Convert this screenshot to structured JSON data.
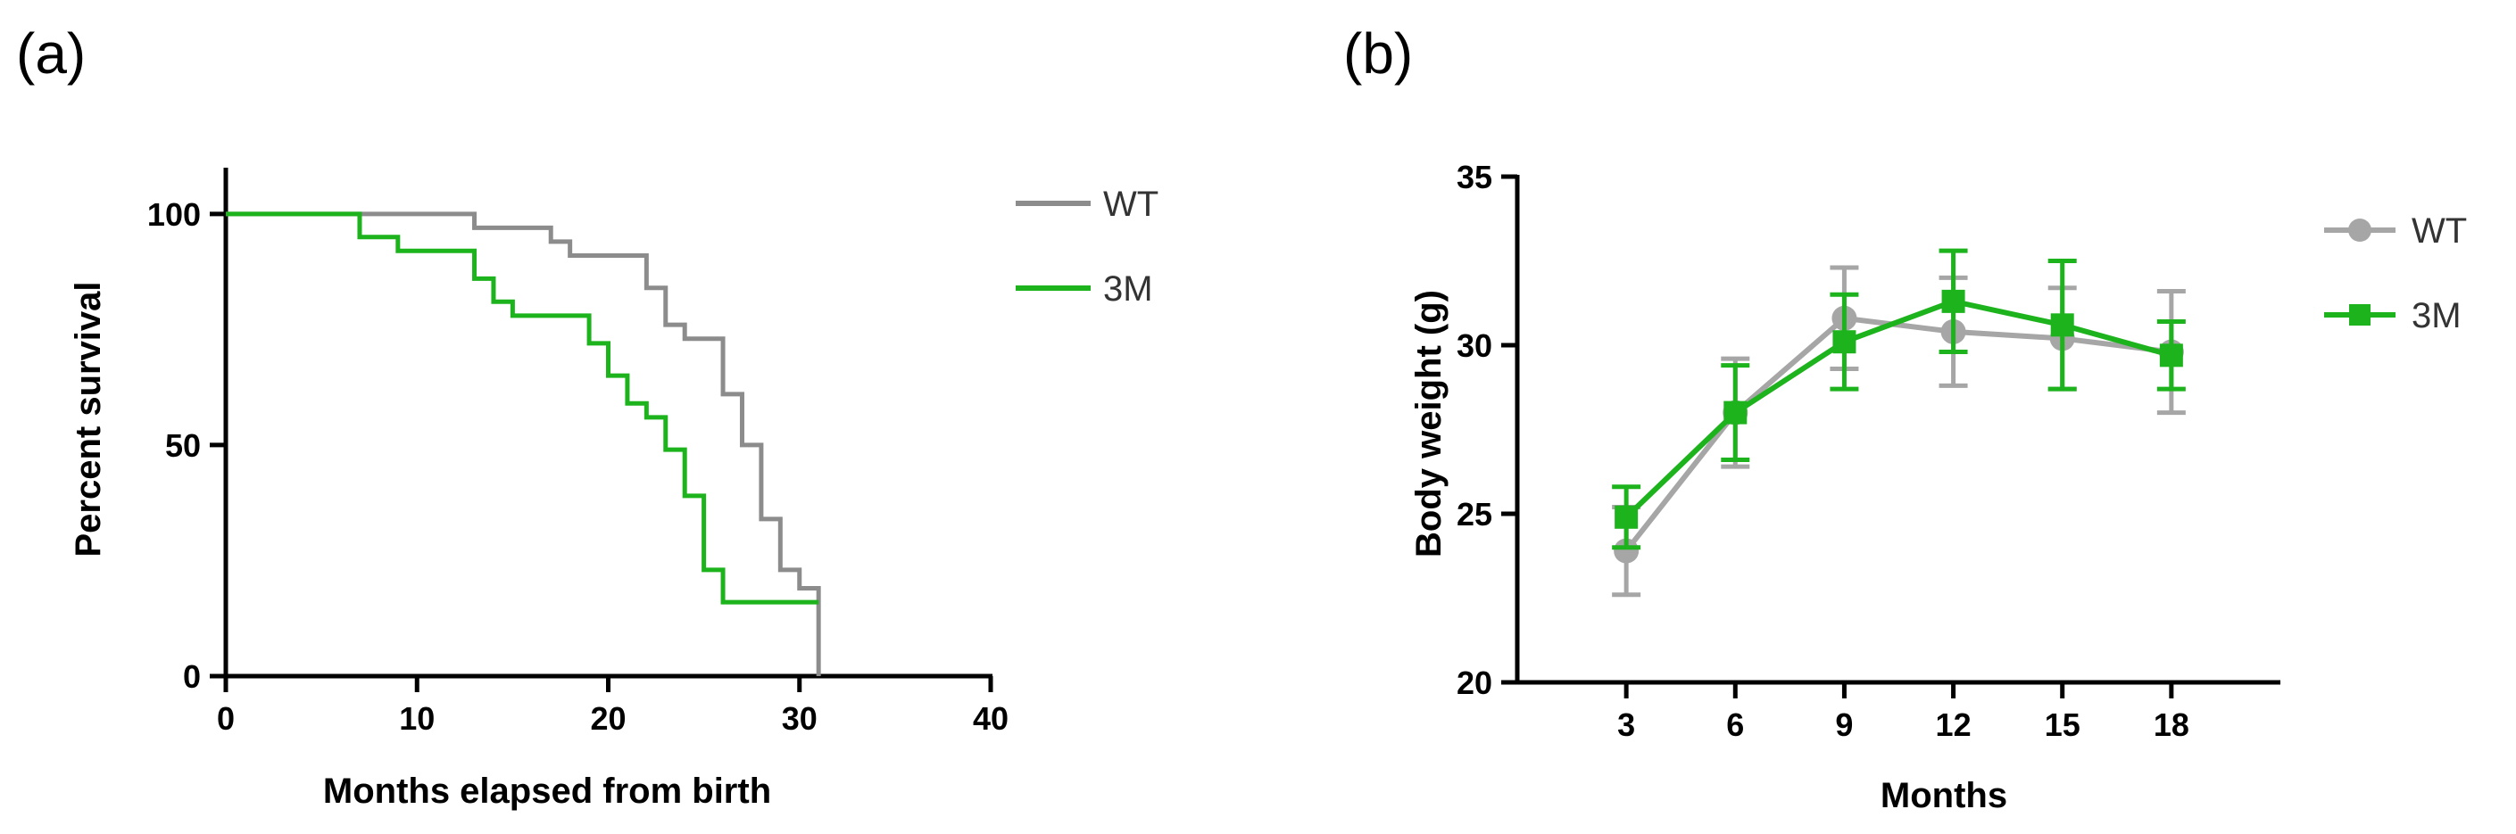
{
  "colors": {
    "wt": "#8c8c8c",
    "wt_b": "#a6a6a6",
    "m3": "#1db31d",
    "axis": "#000000"
  },
  "chart_data": [
    {
      "panel": "(a)",
      "type": "line",
      "subtype": "kaplan-meier-step",
      "xlabel": "Months elapsed from birth",
      "ylabel": "Percent survival",
      "xlim": [
        0,
        40
      ],
      "ylim": [
        0,
        110
      ],
      "xticks": [
        0,
        10,
        20,
        30,
        40
      ],
      "yticks": [
        0,
        50,
        100
      ],
      "legend_position": "top-right",
      "series": [
        {
          "name": "WT",
          "color_key": "wt",
          "x": [
            0,
            13,
            17,
            18,
            22,
            23,
            24,
            26,
            27,
            28,
            29,
            30,
            31,
            31
          ],
          "y": [
            100,
            97,
            94,
            91,
            84,
            76,
            73,
            61,
            50,
            34,
            23,
            19,
            19,
            0
          ]
        },
        {
          "name": "3M",
          "color_key": "m3",
          "x": [
            0,
            7,
            9,
            13,
            14,
            15,
            19,
            20,
            21,
            22,
            23,
            24,
            25,
            26,
            31
          ],
          "y": [
            100,
            95,
            92,
            86,
            81,
            78,
            72,
            65,
            59,
            56,
            49,
            39,
            23,
            16,
            16
          ]
        }
      ]
    },
    {
      "panel": "(b)",
      "type": "line",
      "subtype": "mean-with-error-bars",
      "xlabel": "Months",
      "ylabel": "Body weight (g)",
      "xlim": [
        0,
        21
      ],
      "ylim": [
        20,
        35
      ],
      "xticks": [
        3,
        6,
        9,
        12,
        15,
        18
      ],
      "yticks": [
        20,
        25,
        30,
        35
      ],
      "legend_position": "top-right",
      "series": [
        {
          "name": "WT",
          "color_key": "wt_b",
          "marker": "circle",
          "x": [
            3,
            6,
            9,
            12,
            15,
            18
          ],
          "y": [
            23.9,
            28,
            30.8,
            30.4,
            30.2,
            29.8
          ],
          "err": [
            1.3,
            1.6,
            1.5,
            1.6,
            1.5,
            1.8
          ]
        },
        {
          "name": "3M",
          "color_key": "m3",
          "marker": "square",
          "x": [
            3,
            6,
            9,
            12,
            15,
            18
          ],
          "y": [
            24.9,
            28,
            30.1,
            31.3,
            30.6,
            29.7
          ],
          "err": [
            0.9,
            1.4,
            1.4,
            1.5,
            1.9,
            1.0
          ]
        }
      ]
    }
  ]
}
